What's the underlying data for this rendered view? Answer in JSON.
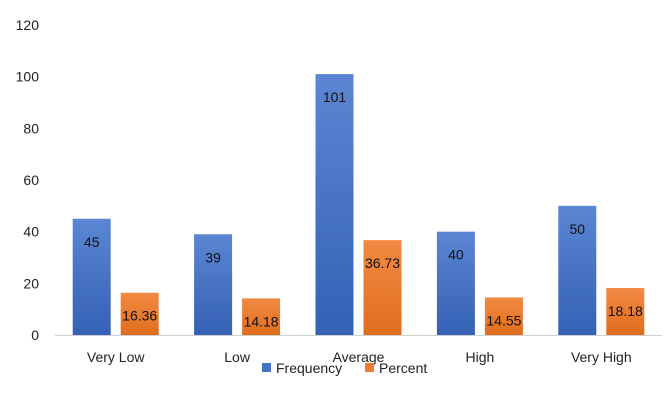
{
  "chart_data": {
    "type": "bar",
    "categories": [
      "Very Low",
      "Low",
      "Average",
      "High",
      "Very High"
    ],
    "series": [
      {
        "name": "Frequency",
        "color": "#4472C4",
        "values": [
          45,
          39,
          101,
          40,
          50
        ],
        "labels": [
          "45",
          "39",
          "101",
          "40",
          "50"
        ]
      },
      {
        "name": "Percent",
        "color": "#ED7D31",
        "values": [
          16.36,
          14.18,
          36.73,
          14.55,
          18.18
        ],
        "labels": [
          "16.36",
          "14.18",
          "36.73",
          "14.55",
          "18.18"
        ]
      }
    ],
    "ylim": [
      0,
      120
    ],
    "yticks": [
      "0",
      "20",
      "40",
      "60",
      "80",
      "100",
      "120"
    ],
    "grid": false,
    "legend": "bottom"
  }
}
